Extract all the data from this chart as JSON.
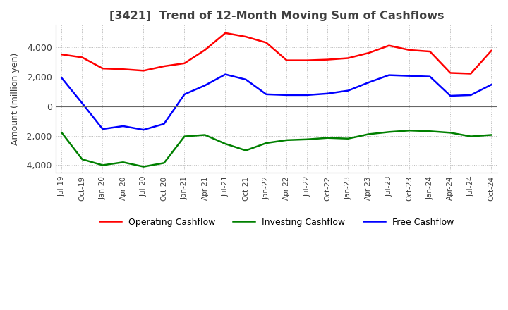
{
  "title": "[3421]  Trend of 12-Month Moving Sum of Cashflows",
  "ylabel": "Amount (million yen)",
  "ylim": [
    -4500,
    5500
  ],
  "yticks": [
    -4000,
    -2000,
    0,
    2000,
    4000
  ],
  "dates": [
    "Jul-19",
    "Oct-19",
    "Jan-20",
    "Apr-20",
    "Jul-20",
    "Oct-20",
    "Jan-21",
    "Apr-21",
    "Jul-21",
    "Oct-21",
    "Jan-22",
    "Apr-22",
    "Jul-22",
    "Oct-22",
    "Jan-23",
    "Apr-23",
    "Jul-23",
    "Oct-23",
    "Jan-24",
    "Apr-24",
    "Jul-24",
    "Oct-24"
  ],
  "operating": [
    3500,
    3300,
    2550,
    2500,
    2400,
    2700,
    2900,
    3800,
    4950,
    4700,
    4300,
    3100,
    3100,
    3150,
    3250,
    3600,
    4100,
    3800,
    3700,
    2250,
    2200,
    3750
  ],
  "investing": [
    -1800,
    -3600,
    -4000,
    -3800,
    -4100,
    -3850,
    -2050,
    -1950,
    -2550,
    -3000,
    -2500,
    -2300,
    -2250,
    -2150,
    -2200,
    -1900,
    -1750,
    -1650,
    -1700,
    -1800,
    -2050,
    -1950
  ],
  "free": [
    1900,
    200,
    -1550,
    -1350,
    -1600,
    -1200,
    800,
    1400,
    2150,
    1800,
    800,
    750,
    750,
    850,
    1050,
    1600,
    2100,
    2050,
    2000,
    700,
    750,
    1450
  ],
  "op_color": "#ff0000",
  "inv_color": "#008000",
  "free_color": "#0000ff",
  "bg_color": "#ffffff",
  "grid_color": "#bbbbbb",
  "title_color": "#404040"
}
